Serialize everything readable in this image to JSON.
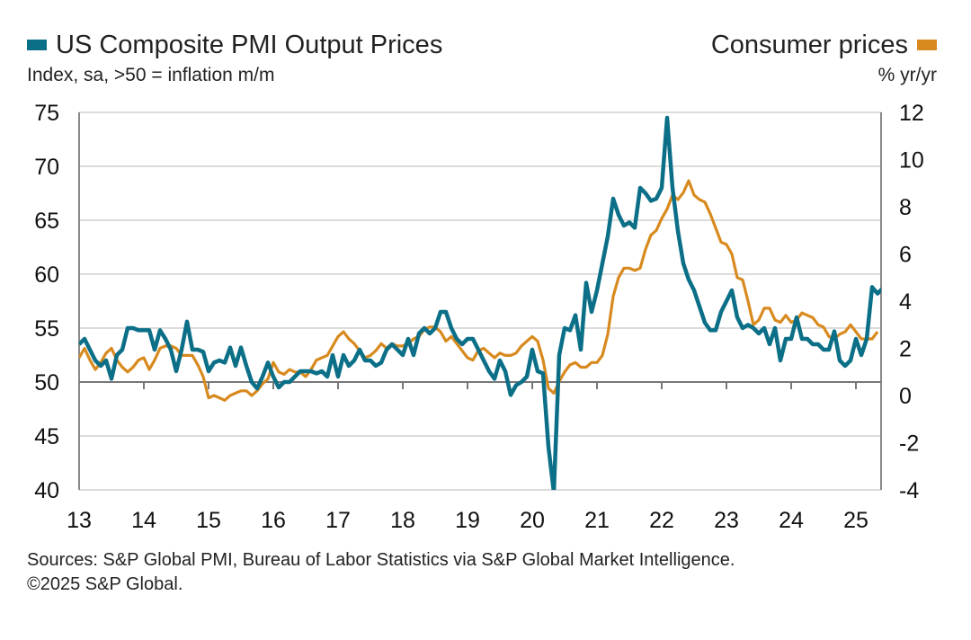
{
  "colors": {
    "pmi": "#0b6f87",
    "cpi": "#d88a1f",
    "grid": "#c8c8c8",
    "axis": "#888888"
  },
  "legend": {
    "left_title": "US Composite PMI Output Prices",
    "left_subtitle": "Index, sa, >50 = inflation m/m",
    "right_title": "Consumer prices",
    "right_subtitle": "% yr/yr"
  },
  "source": {
    "line1": "Sources: S&P Global PMI, Bureau of Labor Statistics via S&P Global Market Intelligence.",
    "line2": "©2025 S&P Global."
  },
  "chart_data": {
    "type": "line",
    "x_start": "2013-01",
    "frequency": "monthly",
    "x_tick_labels": [
      "13",
      "14",
      "15",
      "16",
      "17",
      "18",
      "19",
      "20",
      "21",
      "22",
      "23",
      "24",
      "25"
    ],
    "y_left": {
      "ylim": [
        40,
        75
      ],
      "ticks": [
        40,
        45,
        50,
        55,
        60,
        65,
        70,
        75
      ],
      "tick_labels": [
        "40",
        "45",
        "50",
        "55",
        "60",
        "65",
        "70",
        "75"
      ]
    },
    "y_right": {
      "ylim": [
        -4,
        12
      ],
      "ticks": [
        -4,
        -2,
        0,
        2,
        4,
        6,
        8,
        10,
        12
      ],
      "tick_labels": [
        "-4",
        "-2",
        "0",
        "2",
        "4",
        "6",
        "8",
        "10",
        "12"
      ]
    },
    "grid": true,
    "series": [
      {
        "name": "US Composite PMI Output Prices",
        "axis": "left",
        "values": [
          53.5,
          54,
          53,
          52,
          51.5,
          52,
          50.3,
          52.5,
          53,
          55,
          55,
          54.8,
          54.8,
          54.8,
          53,
          54.8,
          54,
          53,
          51,
          53,
          55.6,
          53,
          53,
          52.8,
          51,
          51.8,
          52,
          51.8,
          53.2,
          51.5,
          53.2,
          51.5,
          50,
          49.4,
          50.5,
          51.8,
          50.5,
          49.5,
          50,
          50,
          50.5,
          51,
          51,
          51,
          50.8,
          51,
          50.5,
          52.5,
          50.5,
          52.5,
          51.5,
          52,
          53,
          52,
          52,
          51.5,
          51.8,
          53,
          53.5,
          53,
          52.5,
          54,
          52.5,
          54.5,
          55,
          54.5,
          55,
          56.5,
          56.5,
          55,
          54,
          53.5,
          54,
          54,
          53,
          52,
          51,
          50.3,
          52,
          51,
          48.8,
          49.7,
          50,
          50.5,
          53,
          51,
          50.8,
          44,
          39.8,
          52.5,
          55,
          54.8,
          56.2,
          53,
          59.2,
          56.5,
          58.5,
          61,
          63.5,
          67,
          65.5,
          64.5,
          64.8,
          64.3,
          68,
          67.5,
          66.8,
          67,
          68,
          74.5,
          68,
          64,
          61,
          59.5,
          58.5,
          57,
          55.5,
          54.8,
          54.8,
          56.5,
          57.5,
          58.5,
          56,
          55,
          55.3,
          55,
          54.5,
          55,
          53.5,
          55,
          52,
          54,
          54,
          56,
          54,
          54,
          53.5,
          53.5,
          53,
          53,
          54.7,
          52,
          51.5,
          52,
          54,
          52.5,
          54,
          58.8,
          58.2,
          58.7
        ]
      },
      {
        "name": "Consumer prices",
        "axis": "right",
        "values": [
          1.6,
          2.0,
          1.5,
          1.1,
          1.4,
          1.8,
          2.0,
          1.5,
          1.2,
          1.0,
          1.2,
          1.5,
          1.6,
          1.1,
          1.5,
          2.0,
          2.1,
          2.1,
          2.0,
          1.7,
          1.7,
          1.7,
          1.3,
          0.8,
          -0.1,
          0.0,
          -0.1,
          -0.2,
          0.0,
          0.1,
          0.2,
          0.2,
          0.0,
          0.2,
          0.5,
          0.7,
          1.4,
          1.0,
          0.9,
          1.1,
          1.0,
          1.0,
          0.8,
          1.1,
          1.5,
          1.6,
          1.7,
          2.1,
          2.5,
          2.7,
          2.4,
          2.2,
          1.9,
          1.6,
          1.7,
          1.9,
          2.2,
          2.0,
          2.2,
          2.1,
          2.1,
          2.2,
          2.4,
          2.5,
          2.8,
          2.9,
          2.9,
          2.7,
          2.3,
          2.5,
          2.2,
          1.9,
          1.6,
          1.5,
          1.9,
          2.0,
          1.8,
          1.6,
          1.8,
          1.7,
          1.7,
          1.8,
          2.1,
          2.3,
          2.5,
          2.3,
          1.5,
          0.3,
          0.1,
          0.6,
          1.0,
          1.3,
          1.4,
          1.2,
          1.2,
          1.4,
          1.4,
          1.7,
          2.6,
          4.2,
          5.0,
          5.4,
          5.4,
          5.3,
          5.4,
          6.2,
          6.8,
          7.0,
          7.5,
          7.9,
          8.5,
          8.3,
          8.6,
          9.1,
          8.5,
          8.3,
          8.2,
          7.7,
          7.1,
          6.5,
          6.4,
          6.0,
          5.0,
          4.9,
          4.0,
          3.0,
          3.2,
          3.7,
          3.7,
          3.2,
          3.1,
          3.4,
          3.1,
          3.2,
          3.5,
          3.4,
          3.3,
          3.0,
          2.9,
          2.5,
          2.4,
          2.6,
          2.7,
          3.0,
          2.7,
          2.4,
          2.4,
          2.4,
          2.7
        ]
      }
    ]
  }
}
